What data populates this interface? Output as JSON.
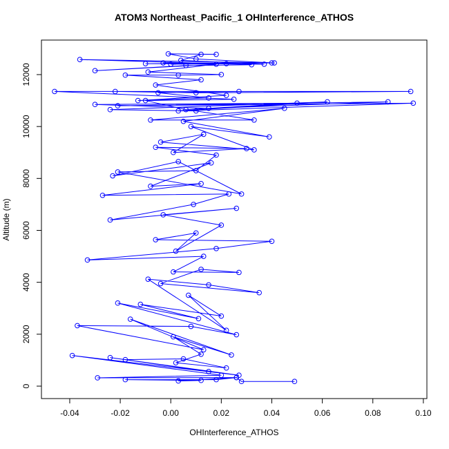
{
  "chart_data": {
    "type": "line",
    "marker": "circle",
    "title": "ATOM3 Northeast_Pacific_1 OHInterference_ATHOS",
    "xlabel": "OHInterference_ATHOS",
    "ylabel": "Altitude (m)",
    "xlim": [
      -0.0512,
      0.1014
    ],
    "ylim": [
      -479,
      13330
    ],
    "xticks": [
      -0.04,
      -0.02,
      {
        "value": 0,
        "label": "0.00"
      },
      0.02,
      0.04,
      0.06,
      0.08,
      {
        "value": 0.1,
        "label": "0.10"
      }
    ],
    "yticks": [
      0,
      2000,
      4000,
      6000,
      8000,
      10000,
      12000
    ],
    "x": [
      0.049,
      0.028,
      0.026,
      0.003,
      0.012,
      -0.018,
      0.018,
      0.026,
      -0.029,
      0.02,
      -0.039,
      0.027,
      -0.024,
      0.015,
      -0.018,
      0.005,
      0.022,
      0.002,
      0.012,
      0.001,
      0.024,
      -0.016,
      0.013,
      -0.037,
      0.008,
      0.026,
      -0.021,
      0.011,
      -0.012,
      0.02,
      0.007,
      0.022,
      -0.009,
      0.015,
      0.035,
      -0.004,
      0.012,
      0.027,
      0.001,
      0.013,
      -0.033,
      0.018,
      0.04,
      -0.006,
      0.01,
      0.002,
      0.02,
      -0.003,
      0.026,
      -0.024,
      0.009,
      0.023,
      -0.027,
      0.012,
      -0.008,
      0.016,
      -0.023,
      0.003,
      0.028,
      -0.021,
      0.01,
      0.018,
      -0.006,
      0.03,
      0.001,
      0.013,
      -0.004,
      0.033,
      0.008,
      0.039,
      0.005,
      0.045,
      -0.008,
      0.033,
      0.01,
      -0.024,
      0.062,
      0.003,
      0.096,
      -0.021,
      0.086,
      0.015,
      -0.03,
      0.05,
      0.006,
      -0.01,
      0.025,
      -0.046,
      0.095,
      0.01,
      -0.022,
      0.027,
      -0.005,
      0.015,
      -0.013,
      0.022,
      -0.006,
      0.012,
      -0.018,
      0.003,
      0.02,
      -0.009,
      0.018,
      -0.03,
      0.006,
      0.032,
      -0.036,
      0.04,
      -0.003,
      0.037,
      0.004,
      0.012,
      0.018,
      -0.001,
      0.01,
      0.041,
      -0.01,
      0.022,
      0.0
    ],
    "series": [
      {
        "color": "#0000ff",
        "values": [
          180,
          180,
          330,
          200,
          220,
          250,
          250,
          330,
          320,
          420,
          1180,
          420,
          1100,
          560,
          1020,
          1050,
          700,
          900,
          1230,
          1900,
          1200,
          2580,
          1400,
          2330,
          2300,
          1980,
          3200,
          2600,
          3150,
          2700,
          3500,
          2150,
          4120,
          3900,
          3600,
          3950,
          4500,
          4380,
          4400,
          5000,
          4860,
          5300,
          5580,
          5640,
          5900,
          5200,
          6200,
          6600,
          6850,
          6400,
          7000,
          7400,
          7350,
          7800,
          7700,
          8600,
          8100,
          8650,
          7400,
          8250,
          8300,
          8900,
          9200,
          9150,
          9000,
          9700,
          9400,
          9100,
          10000,
          9600,
          10200,
          10700,
          10250,
          10250,
          10600,
          10650,
          10950,
          10600,
          10900,
          10800,
          10950,
          10700,
          10850,
          10900,
          10650,
          11000,
          11050,
          11350,
          11350,
          11300,
          11350,
          11350,
          11300,
          11100,
          11000,
          11200,
          11600,
          11800,
          11980,
          11980,
          12000,
          12100,
          12400,
          12150,
          12350,
          12380,
          12580,
          12450,
          12450,
          12400,
          12550,
          12780,
          12780,
          12800,
          12600,
          12450,
          12420,
          12420,
          12400
        ]
      }
    ]
  }
}
